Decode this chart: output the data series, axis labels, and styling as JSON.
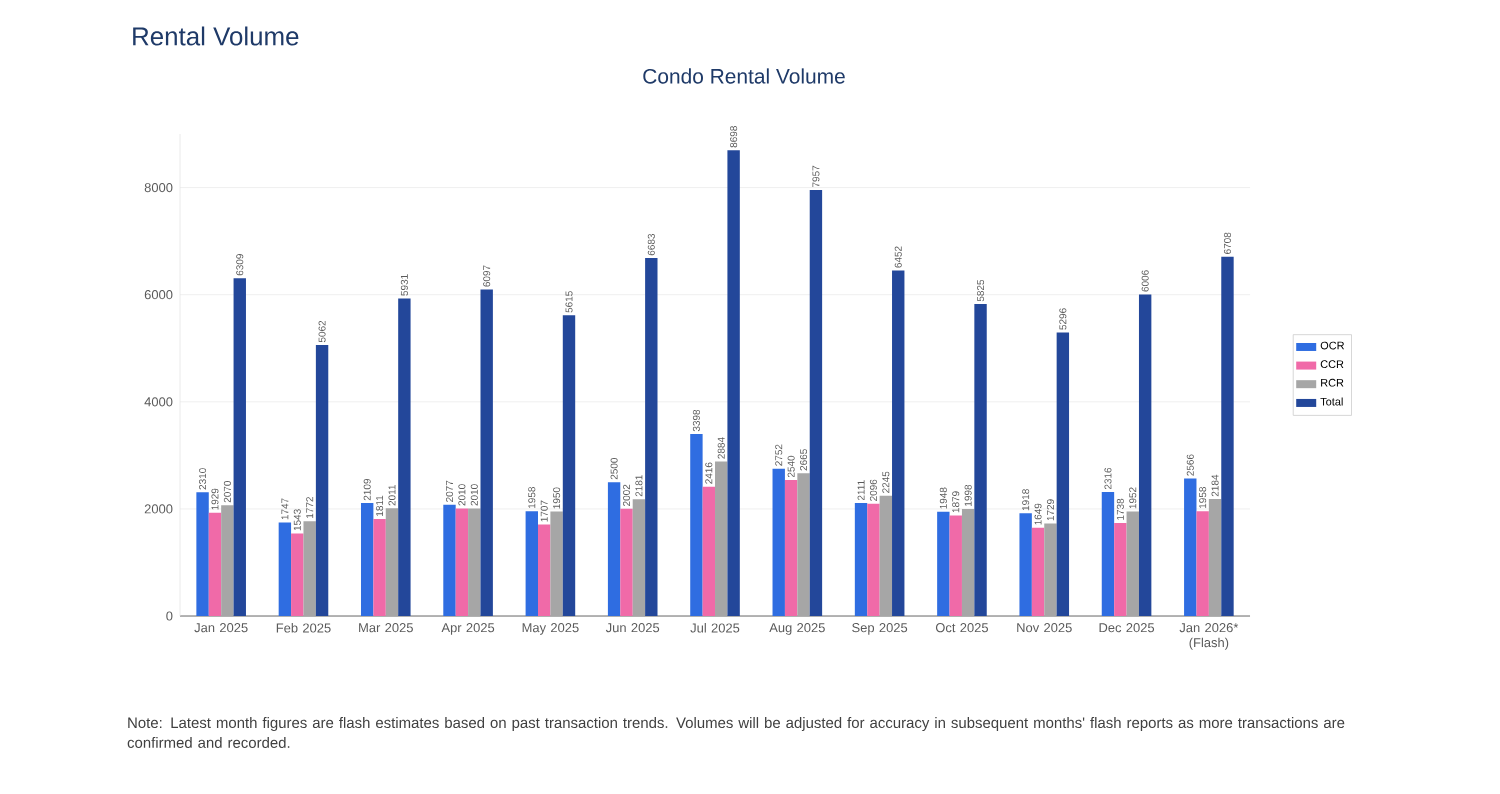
{
  "chart_data": {
    "type": "bar",
    "title": "Rental Volume",
    "subtitle": "Condo Rental Volume",
    "categories": [
      "Jan 2025",
      "Feb 2025",
      "Mar 2025",
      "Apr 2025",
      "May 2025",
      "Jun 2025",
      "Jul 2025",
      "Aug 2025",
      "Sep 2025",
      "Oct 2025",
      "Nov 2025",
      "Dec 2025",
      "Jan 2026* (Flash)"
    ],
    "series": [
      {
        "name": "OCR",
        "color": "#2f6de1",
        "values": [
          2310,
          1747,
          2109,
          2077,
          1958,
          2500,
          3398,
          2752,
          2111,
          1948,
          1918,
          2316,
          2566
        ]
      },
      {
        "name": "CCR",
        "color": "#f06aa8",
        "values": [
          1929,
          1543,
          1811,
          2010,
          1707,
          2002,
          2416,
          2540,
          2096,
          1879,
          1649,
          1738,
          1958
        ]
      },
      {
        "name": "RCR",
        "color": "#a6a6a6",
        "values": [
          2070,
          1772,
          2011,
          2010,
          1950,
          2181,
          2884,
          2665,
          2245,
          1998,
          1729,
          1952,
          2184
        ]
      },
      {
        "name": "Total",
        "color": "#23479a",
        "values": [
          6309,
          5062,
          5931,
          6097,
          5615,
          6683,
          8698,
          7957,
          6452,
          5825,
          5296,
          6006,
          6708
        ]
      }
    ],
    "ylim": [
      0,
      9000
    ],
    "yticks": [
      0,
      2000,
      4000,
      6000,
      8000
    ],
    "grid": "y",
    "legend": "right",
    "data_labels": true,
    "annotations": [
      "Note: Latest month figures are flash estimates based on past transaction trends. Volumes will be adjusted for accuracy in subsequent months' flash reports as more transactions are confirmed and recorded."
    ]
  }
}
